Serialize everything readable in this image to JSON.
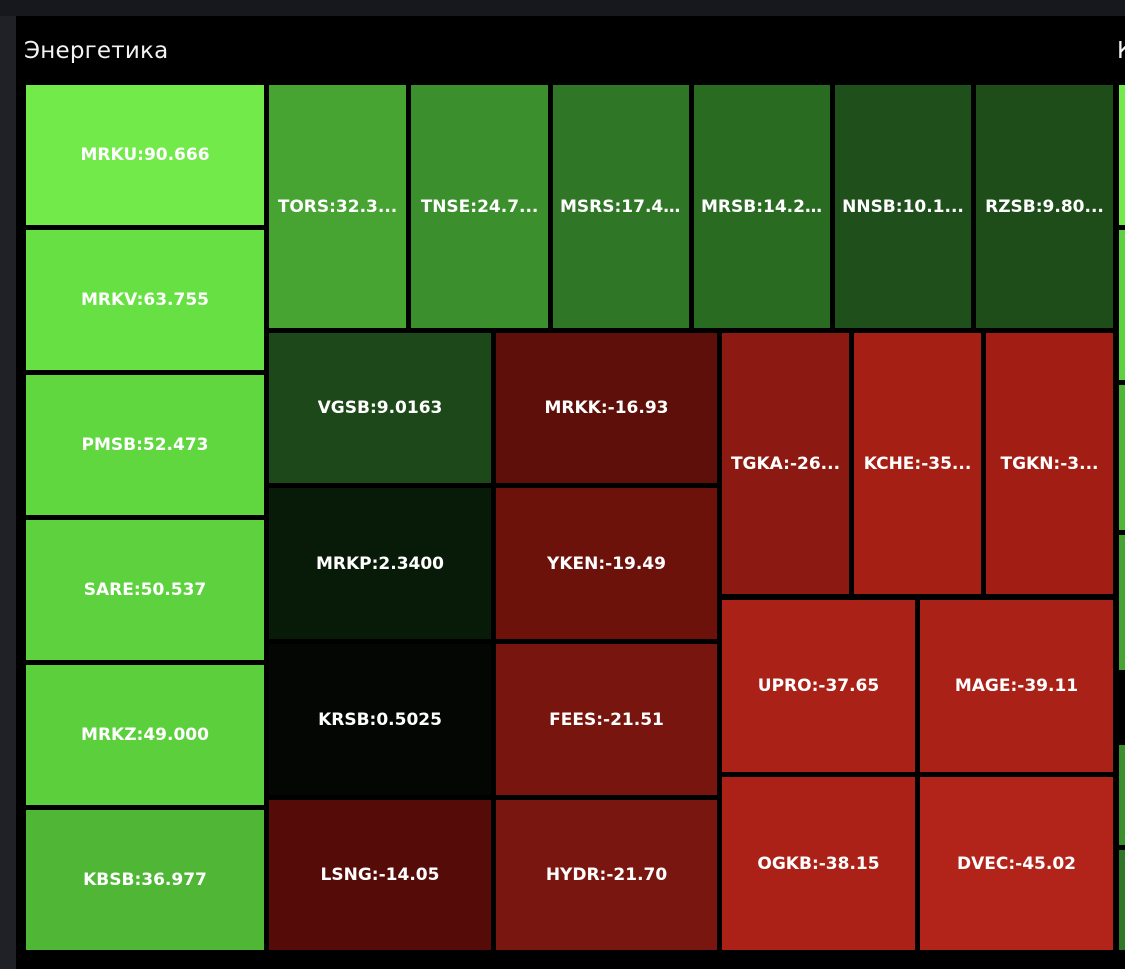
{
  "sector": {
    "title": "Энергетика",
    "next_title": "К"
  },
  "chart_data": {
    "type": "heatmap",
    "title": "Энергетика",
    "tiles": [
      {
        "ticker": "MRKU",
        "value": 90.666,
        "label": "MRKU:90.666",
        "color": "#72ea4a"
      },
      {
        "ticker": "MRKV",
        "value": 63.755,
        "label": "MRKV:63.755",
        "color": "#66e042"
      },
      {
        "ticker": "PMSB",
        "value": 52.473,
        "label": "PMSB:52.473",
        "color": "#60d63f"
      },
      {
        "ticker": "SARE",
        "value": 50.537,
        "label": "SARE:50.537",
        "color": "#5ed23e"
      },
      {
        "ticker": "MRKZ",
        "value": 49.0,
        "label": "MRKZ:49.000",
        "color": "#5ccf3d"
      },
      {
        "ticker": "KBSB",
        "value": 36.977,
        "label": "KBSB:36.977",
        "color": "#4fb636"
      },
      {
        "ticker": "TORS",
        "value": 32.3,
        "label": "TORS:32.3...",
        "color": "#47a332"
      },
      {
        "ticker": "TNSE",
        "value": 24.7,
        "label": "TNSE:24.7...",
        "color": "#3b8f2d"
      },
      {
        "ticker": "MSRS",
        "value": 17.4,
        "label": "MSRS:17.4...",
        "color": "#2f7726"
      },
      {
        "ticker": "MRSB",
        "value": 14.2,
        "label": "MRSB:14.2...",
        "color": "#2a6b22"
      },
      {
        "ticker": "NNSB",
        "value": 10.1,
        "label": "NNSB:10.1...",
        "color": "#1f4f1b"
      },
      {
        "ticker": "RZSB",
        "value": 9.8,
        "label": "RZSB:9.80...",
        "color": "#1e4d1a"
      },
      {
        "ticker": "VGSB",
        "value": 9.0163,
        "label": "VGSB:9.0163",
        "color": "#1d4819"
      },
      {
        "ticker": "MRKP",
        "value": 2.34,
        "label": "MRKP:2.3400",
        "color": "#071b08"
      },
      {
        "ticker": "KRSB",
        "value": 0.5025,
        "label": "KRSB:0.5025",
        "color": "#030603"
      },
      {
        "ticker": "LSNG",
        "value": -14.05,
        "label": "LSNG:-14.05",
        "color": "#550b07"
      },
      {
        "ticker": "MRKK",
        "value": -16.93,
        "label": "MRKK:-16.93",
        "color": "#5f0f09"
      },
      {
        "ticker": "YKEN",
        "value": -19.49,
        "label": "YKEN:-19.49",
        "color": "#6d110b"
      },
      {
        "ticker": "FEES",
        "value": -21.51,
        "label": "FEES:-21.51",
        "color": "#78150e"
      },
      {
        "ticker": "HYDR",
        "value": -21.7,
        "label": "HYDR:-21.70",
        "color": "#7a1610"
      },
      {
        "ticker": "TGKA",
        "value": -26,
        "label": "TGKA:-26...",
        "color": "#8c1a12"
      },
      {
        "ticker": "KCHE",
        "value": -35,
        "label": "KCHE:-35...",
        "color": "#a61f15"
      },
      {
        "ticker": "TGKN",
        "value": -3,
        "label": "TGKN:-3...",
        "color": "#a21e14"
      },
      {
        "ticker": "UPRO",
        "value": -37.65,
        "label": "UPRO:-37.65",
        "color": "#aa2117"
      },
      {
        "ticker": "MAGE",
        "value": -39.11,
        "label": "MAGE:-39.11",
        "color": "#a92117"
      },
      {
        "ticker": "OGKB",
        "value": -38.15,
        "label": "OGKB:-38.15",
        "color": "#ab2117"
      },
      {
        "ticker": "DVEC",
        "value": -45.02,
        "label": "DVEC:-45.02",
        "color": "#b2241a"
      }
    ]
  }
}
